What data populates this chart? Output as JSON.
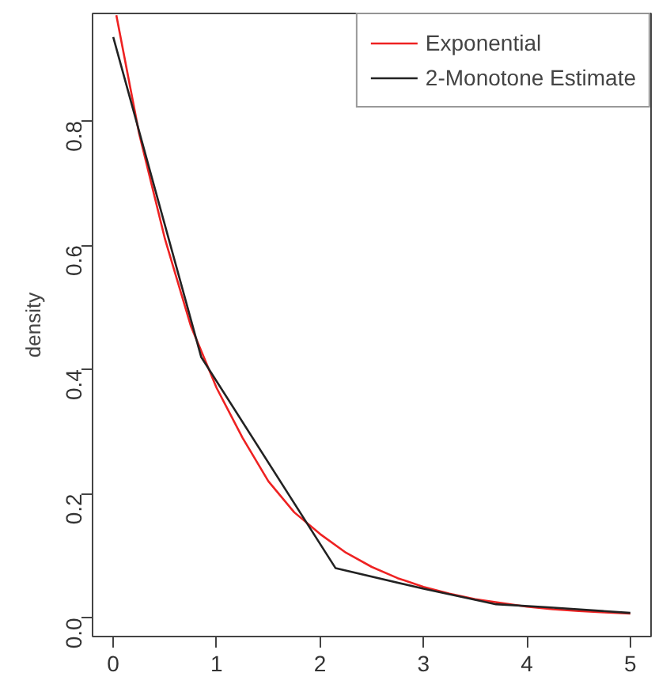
{
  "chart_data": {
    "type": "line",
    "ylabel": "density",
    "xlim": [
      -0.2,
      5.2
    ],
    "ylim": [
      -0.03,
      0.973
    ],
    "xticks": [
      0,
      1,
      2,
      3,
      4,
      5
    ],
    "yticks": [
      {
        "value": 0,
        "label": "0.0"
      },
      {
        "value": 0.2,
        "label": "0.2"
      },
      {
        "value": 0.4,
        "label": "0.4"
      },
      {
        "value": 0.6,
        "label": "0.6"
      },
      {
        "value": 0.8,
        "label": "0.8"
      }
    ],
    "grid": false,
    "legend": "top right",
    "line_style": "solid",
    "marker": "none",
    "series": [
      {
        "name": "Exponential",
        "color": "#ee2222",
        "x": [
          0.03,
          0.25,
          0.5,
          0.75,
          1.0,
          1.25,
          1.5,
          1.75,
          2.0,
          2.25,
          2.5,
          2.75,
          3.0,
          3.25,
          3.5,
          3.75,
          4.0,
          4.25,
          4.5,
          4.75,
          5.0
        ],
        "values": [
          0.97,
          0.78,
          0.61,
          0.47,
          0.37,
          0.29,
          0.22,
          0.17,
          0.135,
          0.105,
          0.082,
          0.064,
          0.05,
          0.039,
          0.03,
          0.024,
          0.018,
          0.014,
          0.011,
          0.009,
          0.007
        ]
      },
      {
        "name": "2-Monotone Estimate",
        "color": "#222222",
        "x": [
          0.0,
          0.85,
          2.15,
          3.0,
          3.7,
          4.2,
          5.0
        ],
        "values": [
          0.935,
          0.42,
          0.08,
          0.047,
          0.022,
          0.017,
          0.008
        ]
      }
    ]
  }
}
